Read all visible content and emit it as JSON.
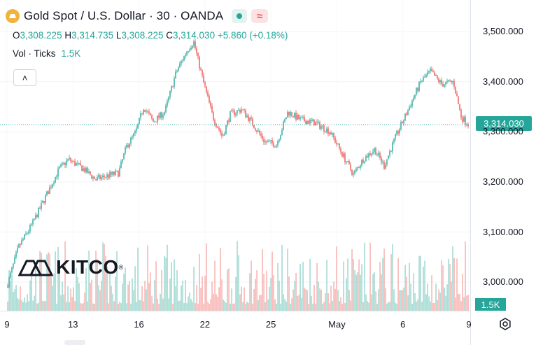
{
  "header": {
    "title": "Gold Spot / U.S. Dollar · 30 · OANDA",
    "wave_symbol": "≈"
  },
  "ohlc": {
    "o_label": "O",
    "o": "3,308.225",
    "h_label": "H",
    "h": "3,314.735",
    "l_label": "L",
    "l": "3,308.225",
    "c_label": "C",
    "c": "3,314.030",
    "change": "+5.860 (+0.18%)"
  },
  "volume_legend": {
    "label": "Vol · Ticks",
    "value": "1.5K"
  },
  "collapse_symbol": "˄",
  "watermark": {
    "text": "KITCO",
    "reg": "®"
  },
  "price_tag": "3,314.030",
  "volume_tag": "1.5K",
  "colors": {
    "up": "#26a69a",
    "down": "#ef5350",
    "up_volume": "#8fd1c8",
    "down_volume": "#f5a6a4"
  },
  "chart_data": {
    "type": "candlestick",
    "y_axis": {
      "ticks": [
        "3,500.000",
        "3,400.000",
        "3,300.000",
        "3,200.000",
        "3,100.000",
        "3,000.000"
      ],
      "tick_values": [
        3500,
        3400,
        3300,
        3200,
        3100,
        3000
      ],
      "range": [
        2943,
        3563
      ]
    },
    "x_axis": {
      "ticks": [
        "9",
        "13",
        "16",
        "22",
        "25",
        "May",
        "6",
        "9"
      ],
      "range": [
        0,
        24
      ]
    },
    "last_price": 3314.03,
    "price_path": [
      [
        0,
        2992
      ],
      [
        0.6,
        3070
      ],
      [
        1.3,
        3115
      ],
      [
        2.0,
        3170
      ],
      [
        2.7,
        3225
      ],
      [
        3.2,
        3245
      ],
      [
        4.0,
        3225
      ],
      [
        4.6,
        3205
      ],
      [
        5.2,
        3212
      ],
      [
        5.8,
        3218
      ],
      [
        6.2,
        3270
      ],
      [
        6.7,
        3300
      ],
      [
        7.1,
        3350
      ],
      [
        7.6,
        3320
      ],
      [
        8.2,
        3340
      ],
      [
        8.8,
        3420
      ],
      [
        9.4,
        3465
      ],
      [
        9.7,
        3480
      ],
      [
        10.2,
        3400
      ],
      [
        10.7,
        3330
      ],
      [
        11.2,
        3290
      ],
      [
        11.6,
        3335
      ],
      [
        12.2,
        3345
      ],
      [
        12.7,
        3320
      ],
      [
        13.4,
        3280
      ],
      [
        14.0,
        3275
      ],
      [
        14.6,
        3340
      ],
      [
        15.2,
        3325
      ],
      [
        16.0,
        3318
      ],
      [
        16.8,
        3300
      ],
      [
        17.5,
        3250
      ],
      [
        18.0,
        3215
      ],
      [
        18.5,
        3245
      ],
      [
        19.1,
        3265
      ],
      [
        19.6,
        3232
      ],
      [
        20.2,
        3290
      ],
      [
        20.8,
        3340
      ],
      [
        21.5,
        3400
      ],
      [
        22.0,
        3420
      ],
      [
        22.6,
        3395
      ],
      [
        23.2,
        3400
      ],
      [
        23.6,
        3330
      ],
      [
        24.0,
        3314
      ]
    ]
  }
}
